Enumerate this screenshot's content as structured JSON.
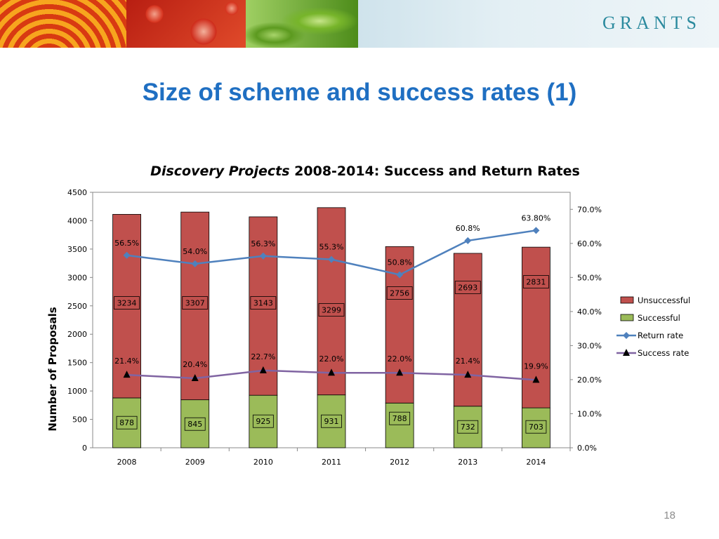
{
  "header": {
    "logo_text": "GRANTS"
  },
  "slide": {
    "title": "Size of scheme and success rates (1)",
    "page_number": "18"
  },
  "colors": {
    "unsuccessful": "#c0504d",
    "successful": "#9bbb59",
    "return_rate": "#4f81bd",
    "success_rate": "#8064a2",
    "title": "#1f6fc2"
  },
  "chart_data": {
    "type": "bar",
    "stacked": true,
    "title_italic": "Discovery Projects",
    "title_rest": " 2008-2014: Success and Return Rates",
    "ylabel": "Number of Proposals",
    "ylim": [
      0,
      4500
    ],
    "yticks": [
      0,
      500,
      1000,
      1500,
      2000,
      2500,
      3000,
      3500,
      4000,
      4500
    ],
    "y2lim": [
      0,
      75
    ],
    "y2ticks": [
      "0.0%",
      "10.0%",
      "20.0%",
      "30.0%",
      "40.0%",
      "50.0%",
      "60.0%",
      "70.0%"
    ],
    "y2tick_values": [
      0,
      10,
      20,
      30,
      40,
      50,
      60,
      70
    ],
    "categories": [
      "2008",
      "2009",
      "2010",
      "2011",
      "2012",
      "2013",
      "2014"
    ],
    "series": [
      {
        "name": "Unsuccessful",
        "kind": "bar",
        "values": [
          3234,
          3307,
          3143,
          3299,
          2756,
          2693,
          2831
        ],
        "labels": [
          "3234",
          "3307",
          "3143",
          "3299",
          "2756",
          "2693",
          "2831"
        ]
      },
      {
        "name": "Successful",
        "kind": "bar",
        "values": [
          878,
          845,
          925,
          931,
          788,
          732,
          703
        ],
        "labels": [
          "878",
          "845",
          "925",
          "931",
          "788",
          "732",
          "703"
        ]
      },
      {
        "name": "Return rate",
        "kind": "line",
        "axis": "right",
        "values": [
          56.5,
          54.0,
          56.3,
          55.3,
          50.8,
          60.8,
          63.8
        ],
        "labels": [
          "56.5%",
          "54.0%",
          "56.3%",
          "55.3%",
          "50.8%",
          "60.8%",
          "63.80%"
        ]
      },
      {
        "name": "Success rate",
        "kind": "line",
        "axis": "right",
        "values": [
          21.4,
          20.4,
          22.7,
          22.0,
          22.0,
          21.4,
          19.9
        ],
        "labels": [
          "21.4%",
          "20.4%",
          "22.7%",
          "22.0%",
          "22.0%",
          "21.4%",
          "19.9%"
        ]
      }
    ],
    "legend_position": "right",
    "grid": false
  }
}
